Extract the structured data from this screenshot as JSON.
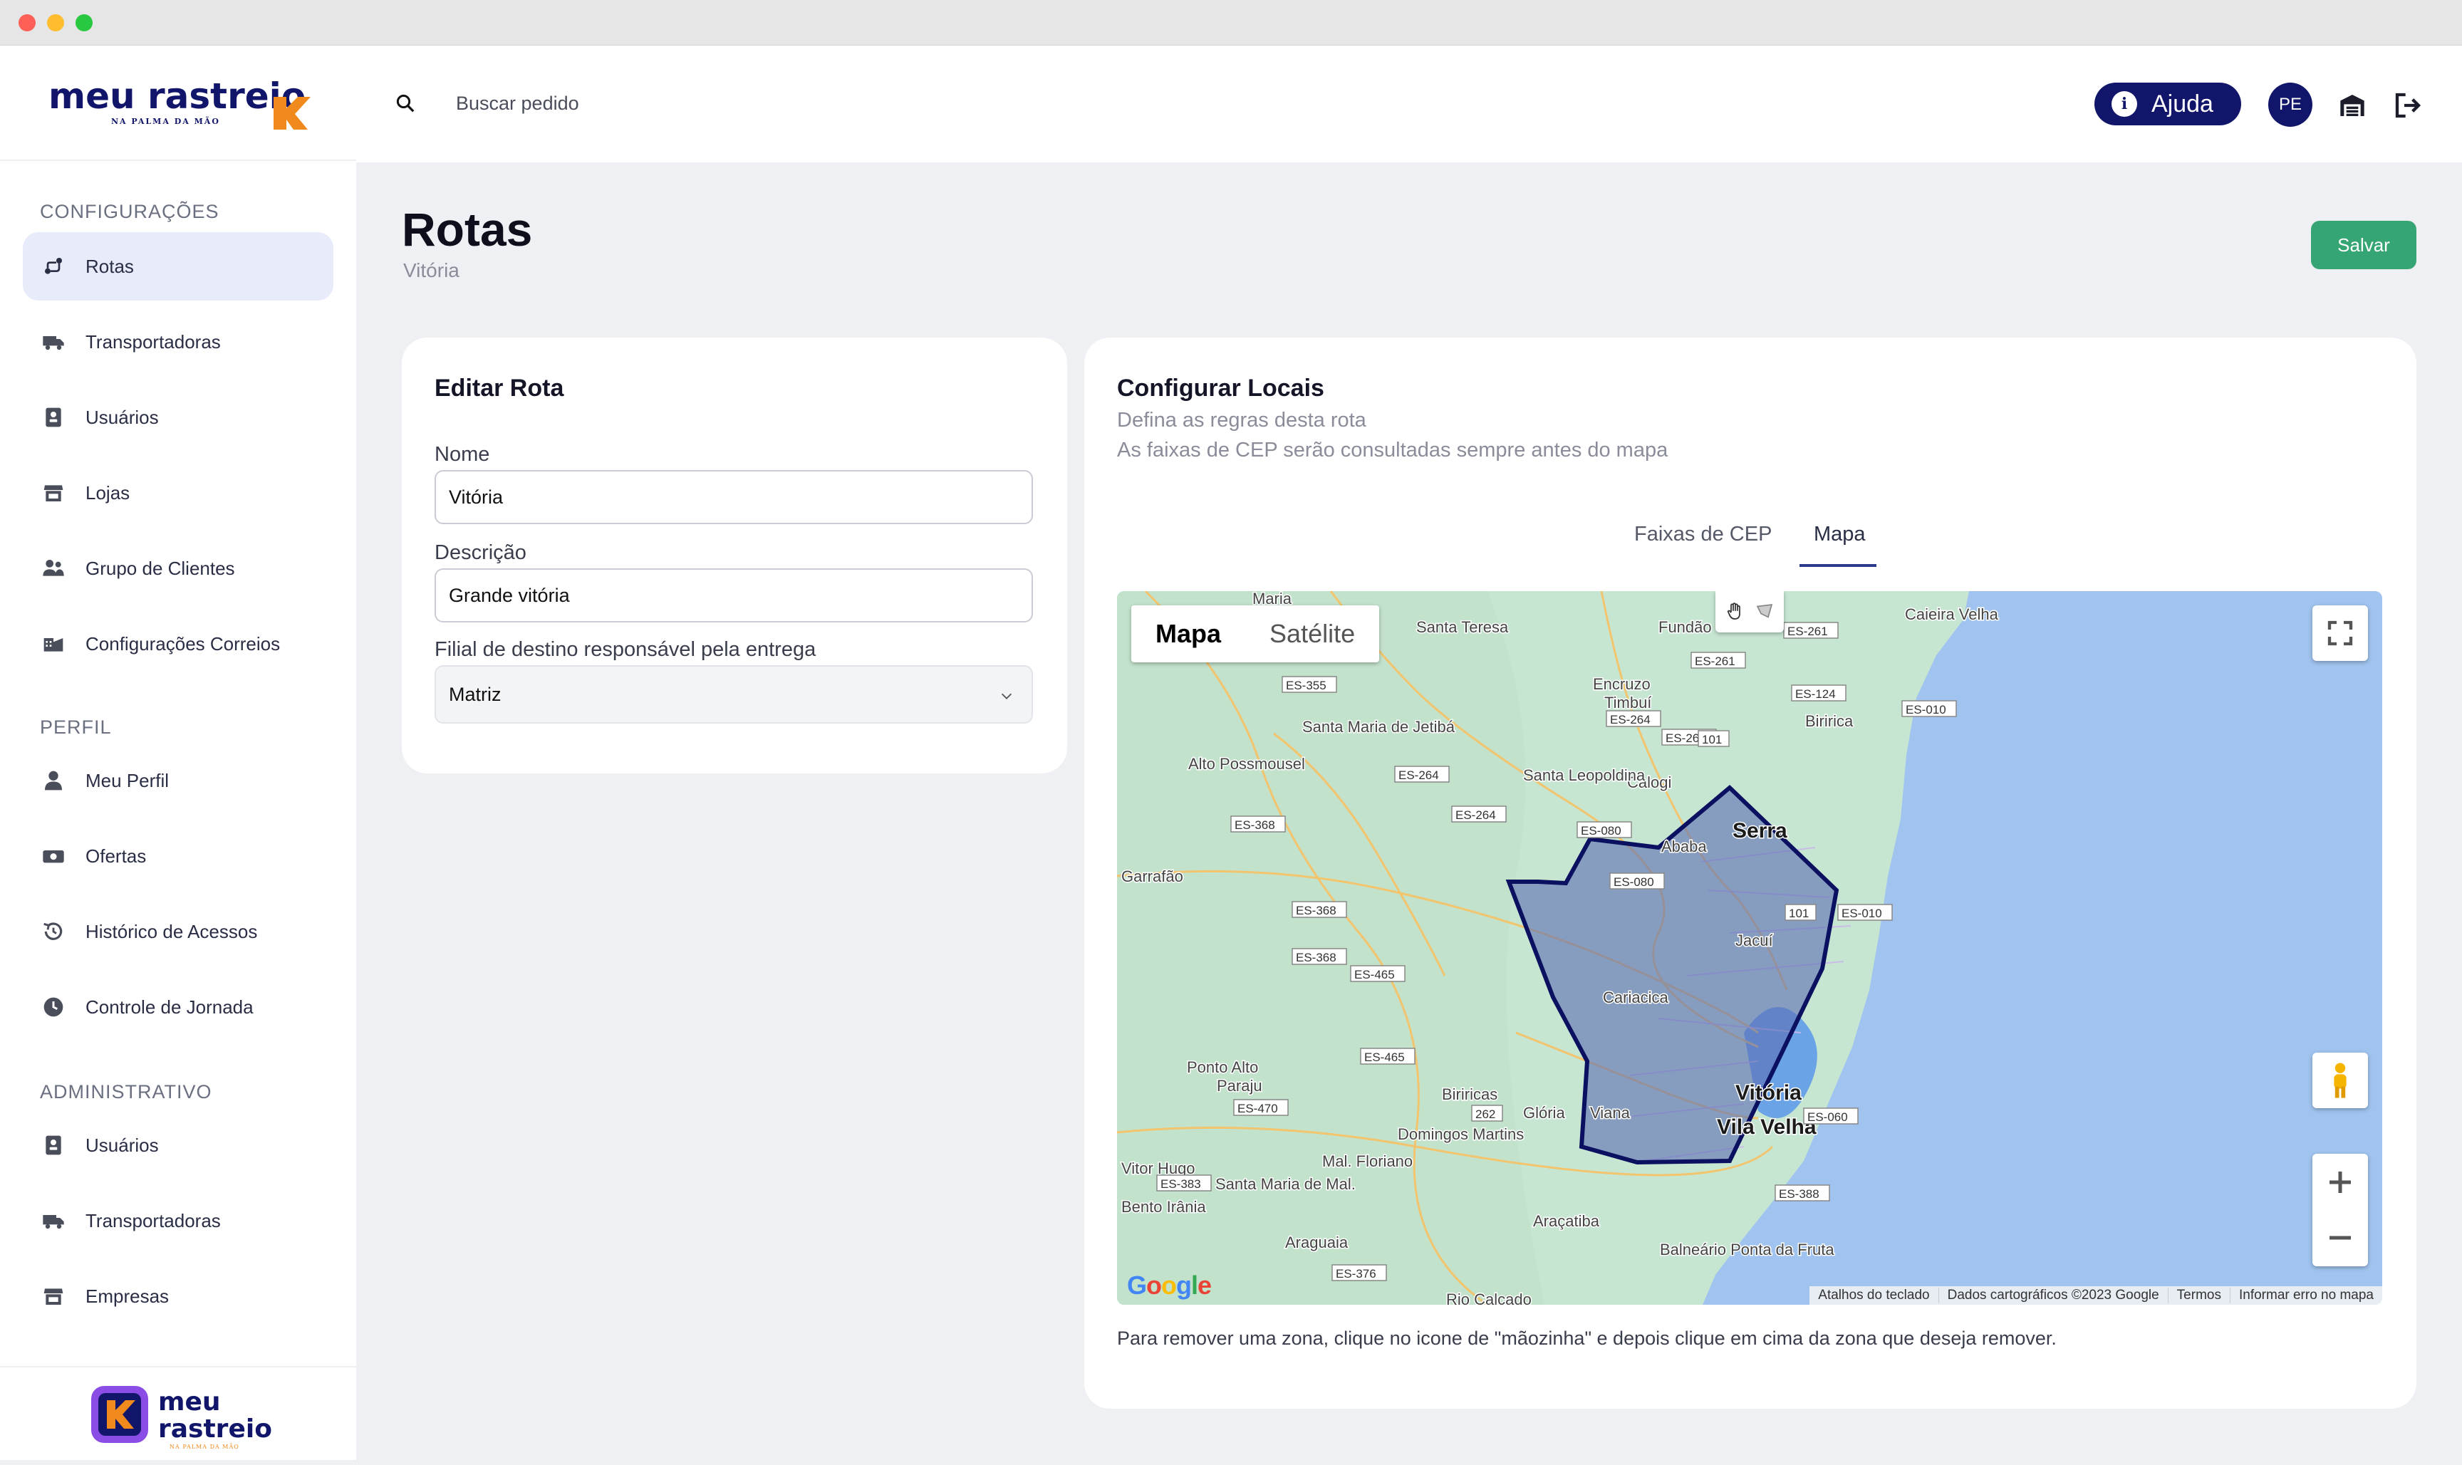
{
  "brand": {
    "logo_line1": "meu rastreio",
    "logo_tagline": "NA PALMA DA MÃO",
    "bottom_line1": "meu",
    "bottom_line2": "rastreio",
    "bottom_tagline": "NA PALMA DA MÃO",
    "color_navy": "#12166a",
    "color_orange": "#f08a1c"
  },
  "sidebar": {
    "section_config": "CONFIGURAÇÕES",
    "section_profile": "PERFIL",
    "section_admin": "ADMINISTRATIVO",
    "config_items": [
      {
        "label": "Rotas",
        "icon": "route-icon",
        "active": true
      },
      {
        "label": "Transportadoras",
        "icon": "truck-icon"
      },
      {
        "label": "Usuários",
        "icon": "user-badge-icon"
      },
      {
        "label": "Lojas",
        "icon": "store-icon"
      },
      {
        "label": "Grupo de Clientes",
        "icon": "users-group-icon"
      },
      {
        "label": "Configurações Correios",
        "icon": "warehouse-icon"
      }
    ],
    "profile_items": [
      {
        "label": "Meu Perfil",
        "icon": "person-icon"
      },
      {
        "label": "Ofertas",
        "icon": "money-icon"
      },
      {
        "label": "Histórico de Acessos",
        "icon": "history-icon"
      },
      {
        "label": "Controle de Jornada",
        "icon": "clock-icon"
      }
    ],
    "admin_items": [
      {
        "label": "Usuários",
        "icon": "user-badge-icon"
      },
      {
        "label": "Transportadoras",
        "icon": "truck-icon"
      },
      {
        "label": "Empresas",
        "icon": "store-icon"
      }
    ]
  },
  "header": {
    "search_placeholder": "Buscar pedido",
    "help_icon": "i",
    "help_label": "Ajuda",
    "avatar_initials": "PE"
  },
  "page": {
    "title": "Rotas",
    "subtitle": "Vitória",
    "save_label": "Salvar"
  },
  "edit_card": {
    "title": "Editar Rota",
    "name_label": "Nome",
    "name_value": "Vitória",
    "desc_label": "Descrição",
    "desc_value": "Grande vitória",
    "branch_label": "Filial de destino responsável pela entrega",
    "branch_value": "Matriz"
  },
  "locations_card": {
    "title": "Configurar Locais",
    "line1": "Defina as regras desta rota",
    "line2": "As faixas de CEP serão consultadas sempre antes do mapa",
    "tabs": [
      "Faixas de CEP",
      "Mapa"
    ],
    "active_tab": "Mapa",
    "note": "Para remover uma zona, clique no icone de \"mãozinha\" e depois clique em cima da zona que deseja remover."
  },
  "map": {
    "type_map": "Mapa",
    "type_satellite": "Satélite",
    "attribution": [
      "Atalhos do teclado",
      "Dados cartográficos ©2023 Google",
      "Termos",
      "Informar erro no mapa"
    ],
    "google_logo": "Google",
    "places": [
      "Maria",
      "Santa Teresa",
      "Fundão",
      "Caieira Velha",
      "Encruzo",
      "Timbuí",
      "Santa Maria de Jetibá",
      "Biririca",
      "Alto Possmousel",
      "Calogi",
      "Santa Leopoldina",
      "Serra",
      "Garrafão",
      "Jacuí",
      "Cariacica",
      "Ponto Alto",
      "Paraju",
      "Biriricas",
      "Vitória",
      "Vila Velha",
      "Domingos Martins",
      "Glória",
      "Viana",
      "Vitor Hugo",
      "Mal. Floriano",
      "Santa Maria de Mal.",
      "Bento Irânia",
      "Araguaia",
      "Araçatiba",
      "Balneário Ponta da Fruta",
      "Rio Calcado",
      "Ababa"
    ],
    "roads": [
      "ES-355",
      "ES-261",
      "ES-261",
      "ES-124",
      "ES-010",
      "ES-264",
      "ES-264",
      "101",
      "ES-264",
      "ES-368",
      "ES-264",
      "ES-080",
      "ES-368",
      "ES-080",
      "101",
      "ES-010",
      "ES-368",
      "ES-465",
      "ES-465",
      "ES-470",
      "262",
      "ES-060",
      "ES-383",
      "ES-388",
      "ES-376"
    ],
    "colors": {
      "land": "#c7e6d2",
      "water": "#a0c4ef",
      "zone_fill": "#5e6fb5",
      "zone_stroke": "#0b1160",
      "road": "#f2c46d"
    }
  }
}
